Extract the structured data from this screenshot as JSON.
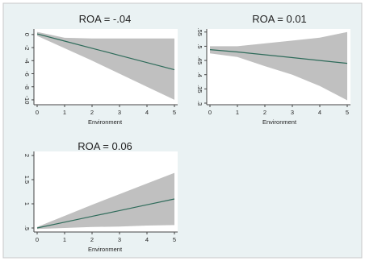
{
  "colors": {
    "background": "#eaf2f3",
    "plot_background": "#ffffff",
    "band": "#c0c0c0",
    "line": "#2e6b5a",
    "axis": "#444444"
  },
  "chart_data": [
    {
      "type": "line",
      "title": "ROA = -.04",
      "xlabel": "Environment",
      "ylabel": "",
      "x": [
        0,
        1,
        2,
        3,
        4,
        5
      ],
      "x_ticks": [
        "0",
        "1",
        "2",
        "3",
        "4",
        "5"
      ],
      "y_ticks": [
        "0",
        "-2",
        "-4",
        "-6",
        "-8",
        "-10"
      ],
      "ylim": [
        -10.5,
        0.6
      ],
      "series": [
        {
          "role": "estimate",
          "values": [
            0.1,
            -1,
            -2.1,
            -3.2,
            -4.3,
            -5.4
          ]
        },
        {
          "role": "ci_upper",
          "values": [
            0.4,
            -0.5,
            -0.6,
            -0.6,
            -0.6,
            -0.6
          ]
        },
        {
          "role": "ci_lower",
          "values": [
            -0.2,
            -2.1,
            -4,
            -6,
            -8,
            -10
          ]
        }
      ]
    },
    {
      "type": "line",
      "title": "ROA = 0.01",
      "xlabel": "Environment",
      "ylabel": "",
      "x": [
        0,
        1,
        2,
        3,
        4,
        5
      ],
      "x_ticks": [
        "0",
        "1",
        "2",
        "3",
        "4",
        "5"
      ],
      "y_ticks": [
        ".55",
        ".5",
        ".45",
        ".4",
        ".35",
        ".3"
      ],
      "ylim": [
        0.3,
        0.555
      ],
      "series": [
        {
          "role": "estimate",
          "values": [
            0.488,
            0.48,
            0.47,
            0.46,
            0.45,
            0.44
          ]
        },
        {
          "role": "ci_upper",
          "values": [
            0.5,
            0.5,
            0.51,
            0.52,
            0.53,
            0.55
          ]
        },
        {
          "role": "ci_lower",
          "values": [
            0.475,
            0.462,
            0.43,
            0.4,
            0.36,
            0.31
          ]
        }
      ]
    },
    {
      "type": "line",
      "title": "ROA = 0.06",
      "xlabel": "Environment",
      "ylabel": "",
      "x": [
        0,
        1,
        2,
        3,
        4,
        5
      ],
      "x_ticks": [
        "0",
        "1",
        "2",
        "3",
        "4",
        "5"
      ],
      "y_ticks": [
        ".5",
        "1",
        "1.5",
        "2"
      ],
      "ylim": [
        0.45,
        2.05
      ],
      "series": [
        {
          "role": "estimate",
          "values": [
            0.5,
            0.62,
            0.74,
            0.86,
            0.98,
            1.1
          ]
        },
        {
          "role": "ci_upper",
          "values": [
            0.52,
            0.75,
            0.98,
            1.2,
            1.42,
            1.64
          ]
        },
        {
          "role": "ci_lower",
          "values": [
            0.48,
            0.5,
            0.52,
            0.53,
            0.55,
            0.56
          ]
        }
      ]
    }
  ]
}
